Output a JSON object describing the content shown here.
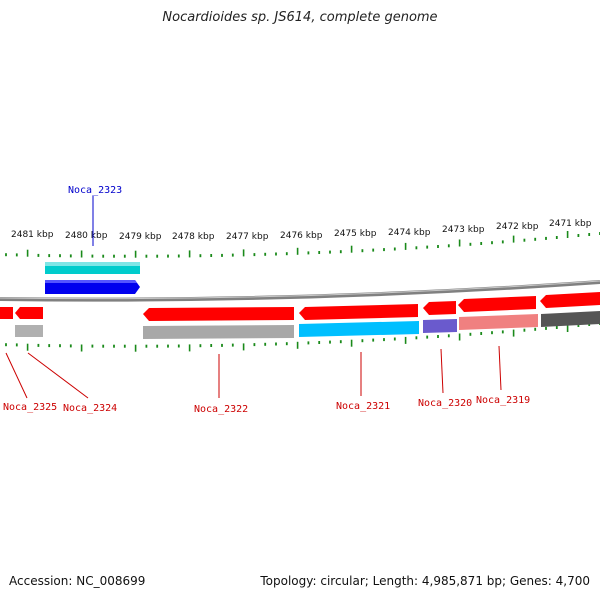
{
  "title": "Nocardioides sp. JS614, complete genome",
  "footer": {
    "accession": "Accession: NC_008699",
    "summary": "Topology: circular; Length: 4,985,871 bp; Genes: 4,700"
  },
  "colors": {
    "background": "#ffffff",
    "backbone": "#808080",
    "tick": "#1a8a1a",
    "label_forward": "#0000cc",
    "label_reverse": "#cc0000"
  },
  "scale_labels": [
    "2481 kbp",
    "2480 kbp",
    "2479 kbp",
    "2478 kbp",
    "2477 kbp",
    "2476 kbp",
    "2475 kbp",
    "2474 kbp",
    "2473 kbp",
    "2472 kbp",
    "2471 kbp"
  ],
  "gene_labels": [
    {
      "name": "Noca_2323",
      "strand": "forward"
    },
    {
      "name": "Noca_2325",
      "strand": "reverse"
    },
    {
      "name": "Noca_2324",
      "strand": "reverse"
    },
    {
      "name": "Noca_2322",
      "strand": "reverse"
    },
    {
      "name": "Noca_2321",
      "strand": "reverse"
    },
    {
      "name": "Noca_2320",
      "strand": "reverse"
    },
    {
      "name": "Noca_2319",
      "strand": "reverse"
    }
  ],
  "genes": [
    {
      "strand": "forward",
      "track": "outer",
      "color": "#00cccc"
    },
    {
      "strand": "forward",
      "track": "inner",
      "color": "#0000ee"
    },
    {
      "strand": "reverse",
      "track": "inner",
      "color": "#ff0000"
    },
    {
      "strand": "reverse",
      "track": "inner",
      "color": "#ff0000"
    },
    {
      "strand": "reverse",
      "track": "outer",
      "color": "#b0b0b0"
    },
    {
      "strand": "reverse",
      "track": "inner",
      "color": "#ff0000"
    },
    {
      "strand": "reverse",
      "track": "outer",
      "color": "#a8a8a8"
    },
    {
      "strand": "reverse",
      "track": "inner",
      "color": "#ff0000"
    },
    {
      "strand": "reverse",
      "track": "outer",
      "color": "#00bfff"
    },
    {
      "strand": "reverse",
      "track": "inner",
      "color": "#ff0000"
    },
    {
      "strand": "reverse",
      "track": "outer",
      "color": "#6a5acd"
    },
    {
      "strand": "reverse",
      "track": "inner",
      "color": "#ff0000"
    },
    {
      "strand": "reverse",
      "track": "outer",
      "color": "#f08080"
    },
    {
      "strand": "reverse",
      "track": "inner",
      "color": "#ff0000"
    },
    {
      "strand": "reverse",
      "track": "outer",
      "color": "#555555"
    }
  ]
}
